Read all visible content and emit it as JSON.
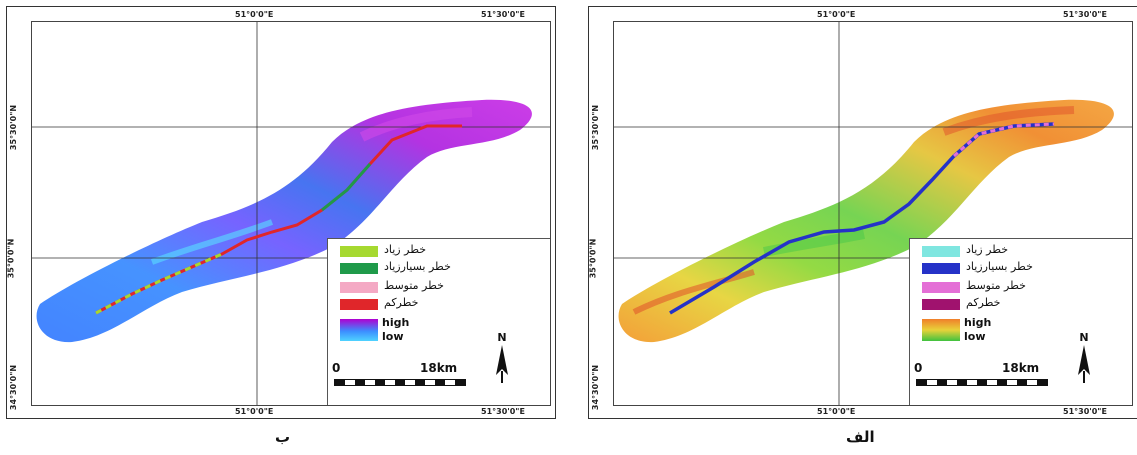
{
  "panels": [
    {
      "id": "b",
      "caption": "ب",
      "coords": {
        "top_left": "51°0'0\"E",
        "top_right": "51°30'0\"E",
        "bottom_left": "51°0'0\"E",
        "bottom_right": "51°30'0\"E",
        "lat_1": "35°30'0\"N",
        "lat_2": "35°0'0\"N",
        "lat_3": "34°30'0\"N"
      },
      "legend": {
        "items": [
          {
            "label": "خطر زیاد",
            "color": "#a6d930"
          },
          {
            "label": "خطر بسیارزیاد",
            "color": "#1f9a4a"
          },
          {
            "label": "خطر متوسط",
            "color": "#f4a9c4"
          },
          {
            "label": "خطرکم",
            "color": "#e0262a"
          }
        ],
        "ramp_high": "high",
        "ramp_low": "low",
        "ramp_colors": [
          "#b000d0",
          "#3c8dff",
          "#4fd3ff"
        ]
      },
      "scale": {
        "zero": "0",
        "distance": "18km"
      },
      "north_label": "N"
    },
    {
      "id": "alef",
      "caption": "الف",
      "coords": {
        "top_left": "51°0'0\"E",
        "top_right": "51°30'0\"E",
        "bottom_left": "51°0'0\"E",
        "bottom_right": "51°30'0\"E",
        "lat_1": "35°30'0\"N",
        "lat_2": "35°0'0\"N",
        "lat_3": "34°30'0\"N"
      },
      "legend": {
        "items": [
          {
            "label": "خطر زیاد",
            "color": "#7fe6e0"
          },
          {
            "label": "خطر بسیارزیاد",
            "color": "#2532c8"
          },
          {
            "label": "خطر متوسط",
            "color": "#e46fd6"
          },
          {
            "label": "خطرکم",
            "color": "#a0126e"
          }
        ],
        "ramp_high": "high",
        "ramp_low": "low",
        "ramp_colors": [
          "#f07f2a",
          "#e8d23a",
          "#3fc23f"
        ]
      },
      "scale": {
        "zero": "0",
        "distance": "18km"
      },
      "north_label": "N"
    }
  ]
}
